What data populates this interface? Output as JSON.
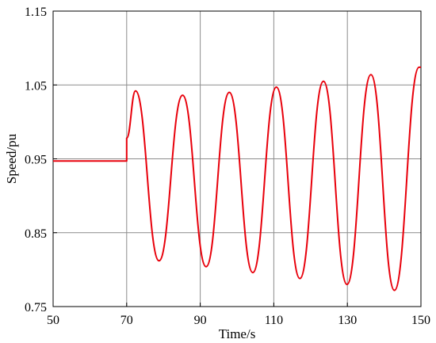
{
  "chart_data": {
    "type": "line",
    "title": "",
    "xlabel": "Time/s",
    "ylabel": "Speed/pu",
    "xlim": [
      50,
      150
    ],
    "ylim": [
      0.75,
      1.15
    ],
    "x_ticks": [
      50,
      70,
      90,
      110,
      130,
      150
    ],
    "x_tick_labels": [
      "50",
      "70",
      "90",
      "110",
      "130",
      "150"
    ],
    "y_ticks": [
      0.75,
      0.85,
      0.95,
      1.05,
      1.15
    ],
    "y_tick_labels": [
      "0.75",
      "0.85",
      "0.95",
      "1.05",
      "1.15"
    ],
    "grid": true,
    "legend": "none",
    "series": [
      {
        "color": "#e8000b",
        "x": [
          50,
          70,
          70.0,
          72.4,
          78.8,
          85.2,
          91.6,
          97.9,
          104.3,
          110.7,
          117.1,
          123.5,
          129.9,
          136.4,
          142.8,
          149.5,
          150
        ],
        "y": [
          0.947,
          0.947,
          0.978,
          1.042,
          0.812,
          1.036,
          0.804,
          1.04,
          0.796,
          1.047,
          0.788,
          1.055,
          0.78,
          1.064,
          0.772,
          1.074,
          1.074
        ]
      }
    ]
  }
}
